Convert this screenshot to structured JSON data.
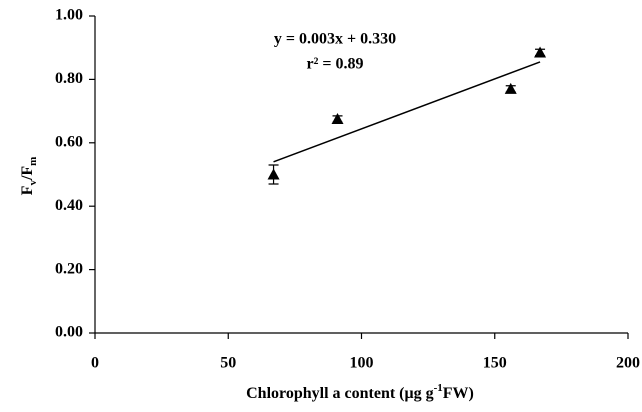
{
  "chart_data": {
    "type": "scatter",
    "x": [
      67,
      91,
      156,
      167
    ],
    "values": [
      0.5,
      0.675,
      0.77,
      0.885
    ],
    "errors": [
      0.03,
      0.01,
      0.01,
      0.01
    ],
    "color": "#000000",
    "trend": {
      "x": [
        67,
        167
      ],
      "values": [
        0.54,
        0.855
      ]
    },
    "annotations": [
      "y = 0.003x + 0.330",
      "r² = 0.89"
    ],
    "ylabel": [
      "F",
      "v",
      "/F",
      "m"
    ],
    "xlabel": [
      "Chlorophyll a content (μg g",
      "-1",
      "FW)"
    ],
    "xlim": [
      0,
      200
    ],
    "xticks": [
      0,
      50,
      100,
      150,
      200
    ],
    "ylim": [
      0,
      1
    ],
    "yticks": [
      {
        "value": 0,
        "label": "0.00"
      },
      {
        "value": 0.2,
        "label": "0.20"
      },
      {
        "value": 0.4,
        "label": "0.40"
      },
      {
        "value": 0.6,
        "label": "0.60"
      },
      {
        "value": 0.8,
        "label": "0.80"
      },
      {
        "value": 1,
        "label": "1.00"
      }
    ]
  }
}
